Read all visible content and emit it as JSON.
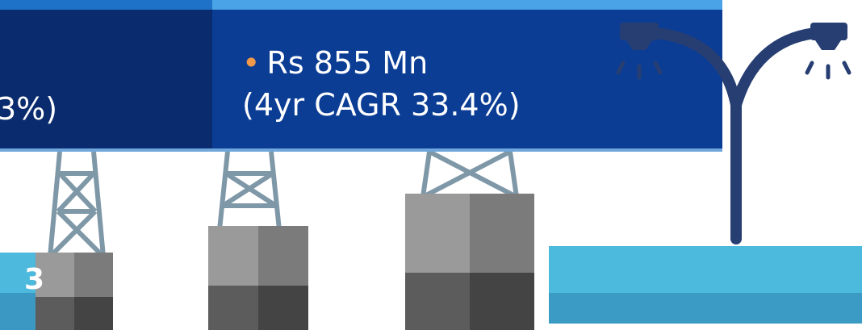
{
  "banner": {
    "left_partial_text": "3%)",
    "right_line1": "Rs 855 Mn",
    "right_line2": "(4yr CAGR 33.4%)",
    "bullet_color": "#f1994a"
  },
  "tile": {
    "partial_digit": "3"
  },
  "colors": {
    "banner_dark": "#0a2c6e",
    "banner_blue": "#0b3d94",
    "tower_steel": "#7f98a8",
    "block_light": "#9a9a9a",
    "block_dark": "#555555",
    "lamp_pole": "#273e73",
    "water_light": "#4cbadc",
    "water_dark": "#3b9bc4"
  },
  "icons": [
    "transmission-tower-icon",
    "street-lamp-icon",
    "lamp-light-icon",
    "water-icon"
  ]
}
